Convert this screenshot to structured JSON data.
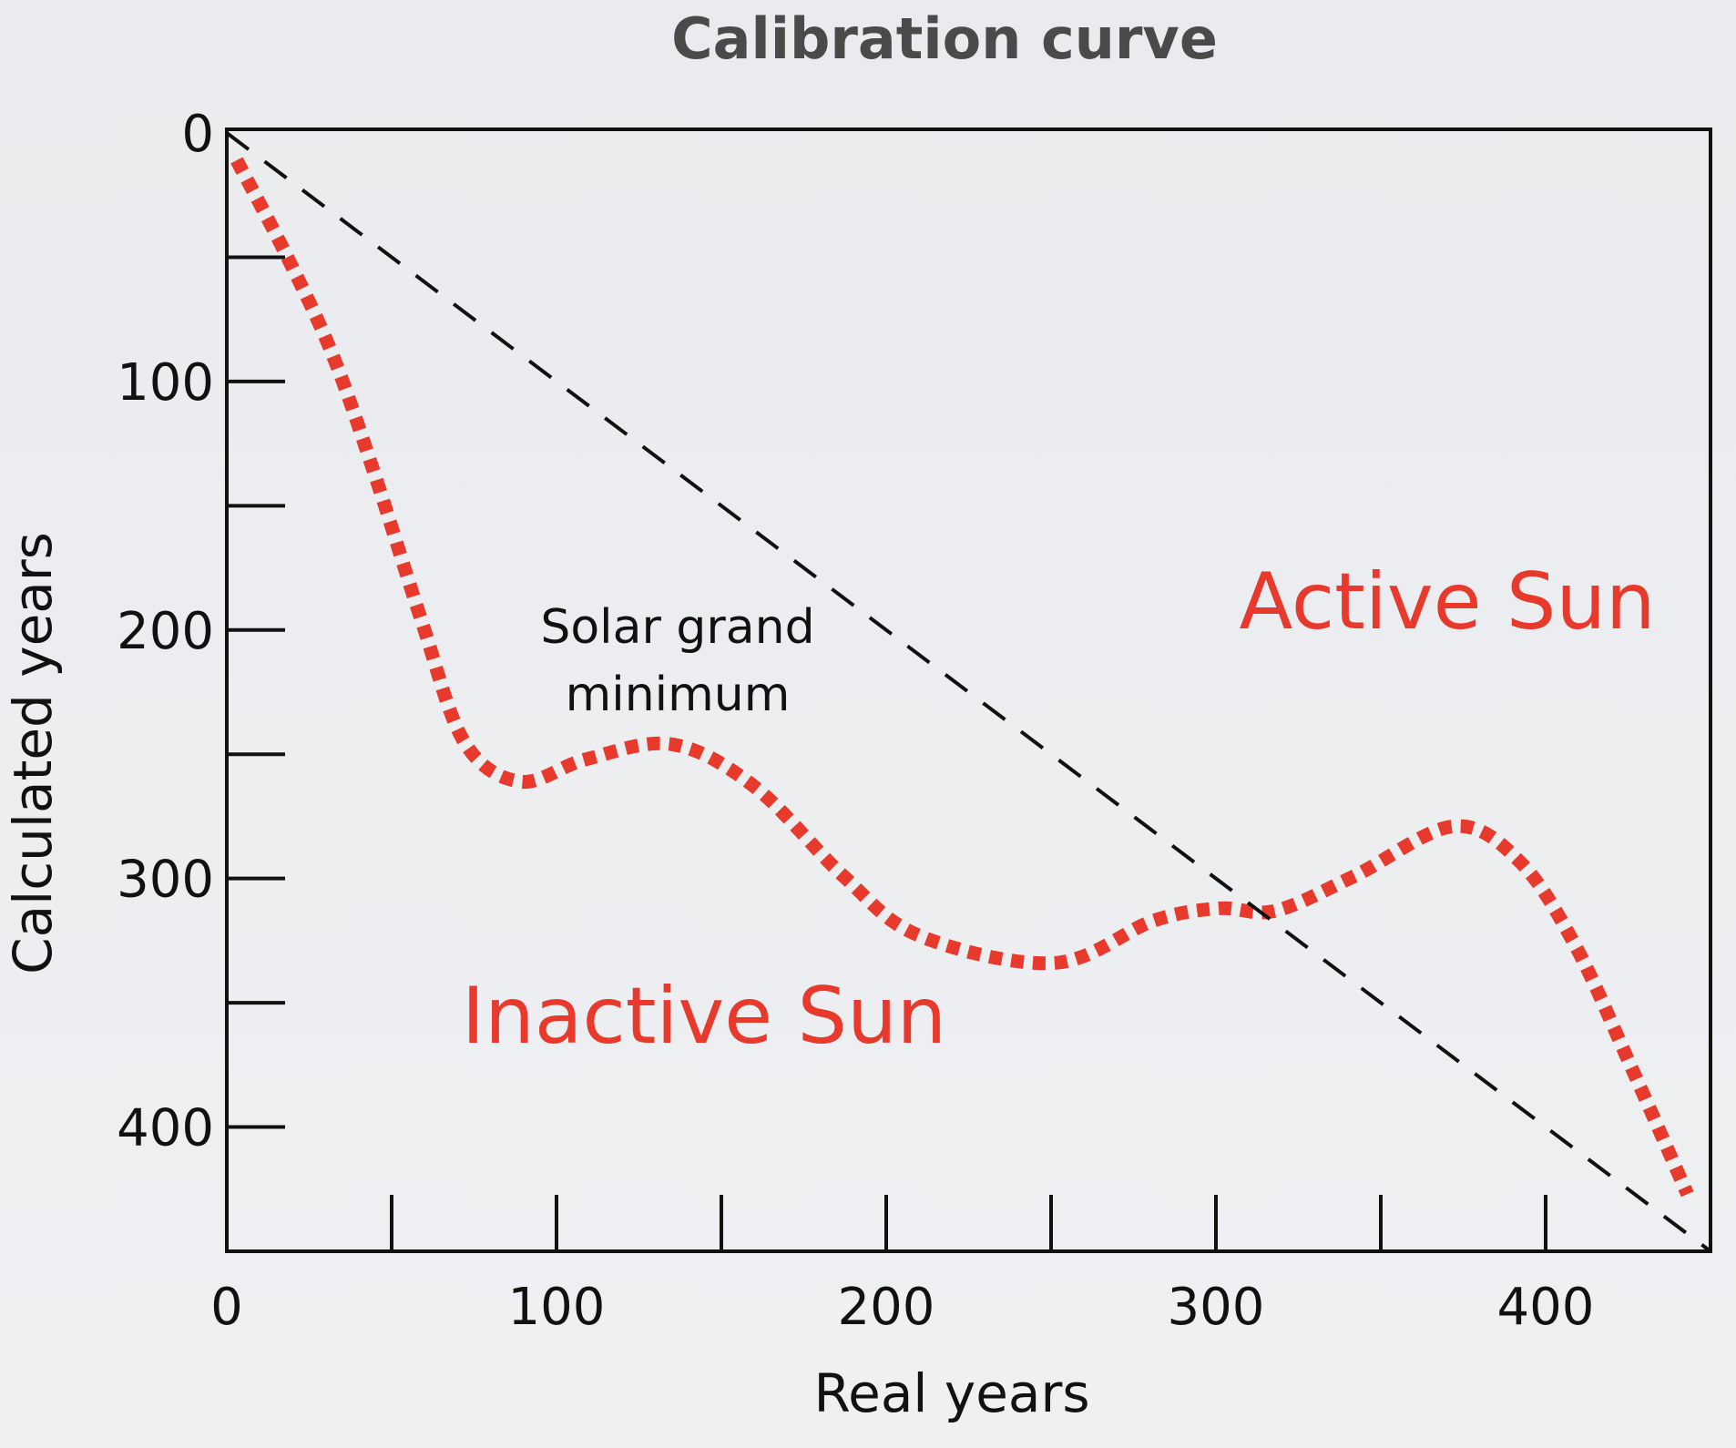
{
  "chart_data": {
    "type": "line",
    "title": "Calibration curve",
    "xlabel": "Real years",
    "ylabel": "Calculated years",
    "xlim": [
      0,
      450
    ],
    "ylim": [
      0,
      450
    ],
    "y_inverted": true,
    "grid": false,
    "x_ticks": [
      0,
      100,
      200,
      300,
      400
    ],
    "y_ticks": [
      0,
      100,
      200,
      300,
      400
    ],
    "minor_tick_step": 50,
    "series": [
      {
        "style": "dotted",
        "color": "#e8392d",
        "x": [
          3,
          18,
          32,
          45,
          59,
          72,
          89,
          109,
          135,
          160,
          187,
          210,
          251,
          281,
          301,
          318,
          342,
          372,
          392,
          409,
          426,
          443
        ],
        "y": [
          11,
          49,
          89,
          138,
          196,
          245,
          261,
          252,
          246,
          263,
          299,
          323,
          334,
          317,
          312,
          313,
          299,
          279,
          293,
          327,
          376,
          427
        ]
      },
      {
        "style": "dashed",
        "color": "#111111",
        "x": [
          0,
          450
        ],
        "y": [
          0,
          450
        ]
      }
    ],
    "annotations": [
      {
        "text": "Active Sun",
        "color": "#e8392d"
      },
      {
        "text": "Inactive Sun",
        "color": "#e8392d"
      },
      {
        "text": "Solar grand",
        "color": "#111111"
      },
      {
        "text": "minimum",
        "color": "#111111"
      }
    ]
  }
}
